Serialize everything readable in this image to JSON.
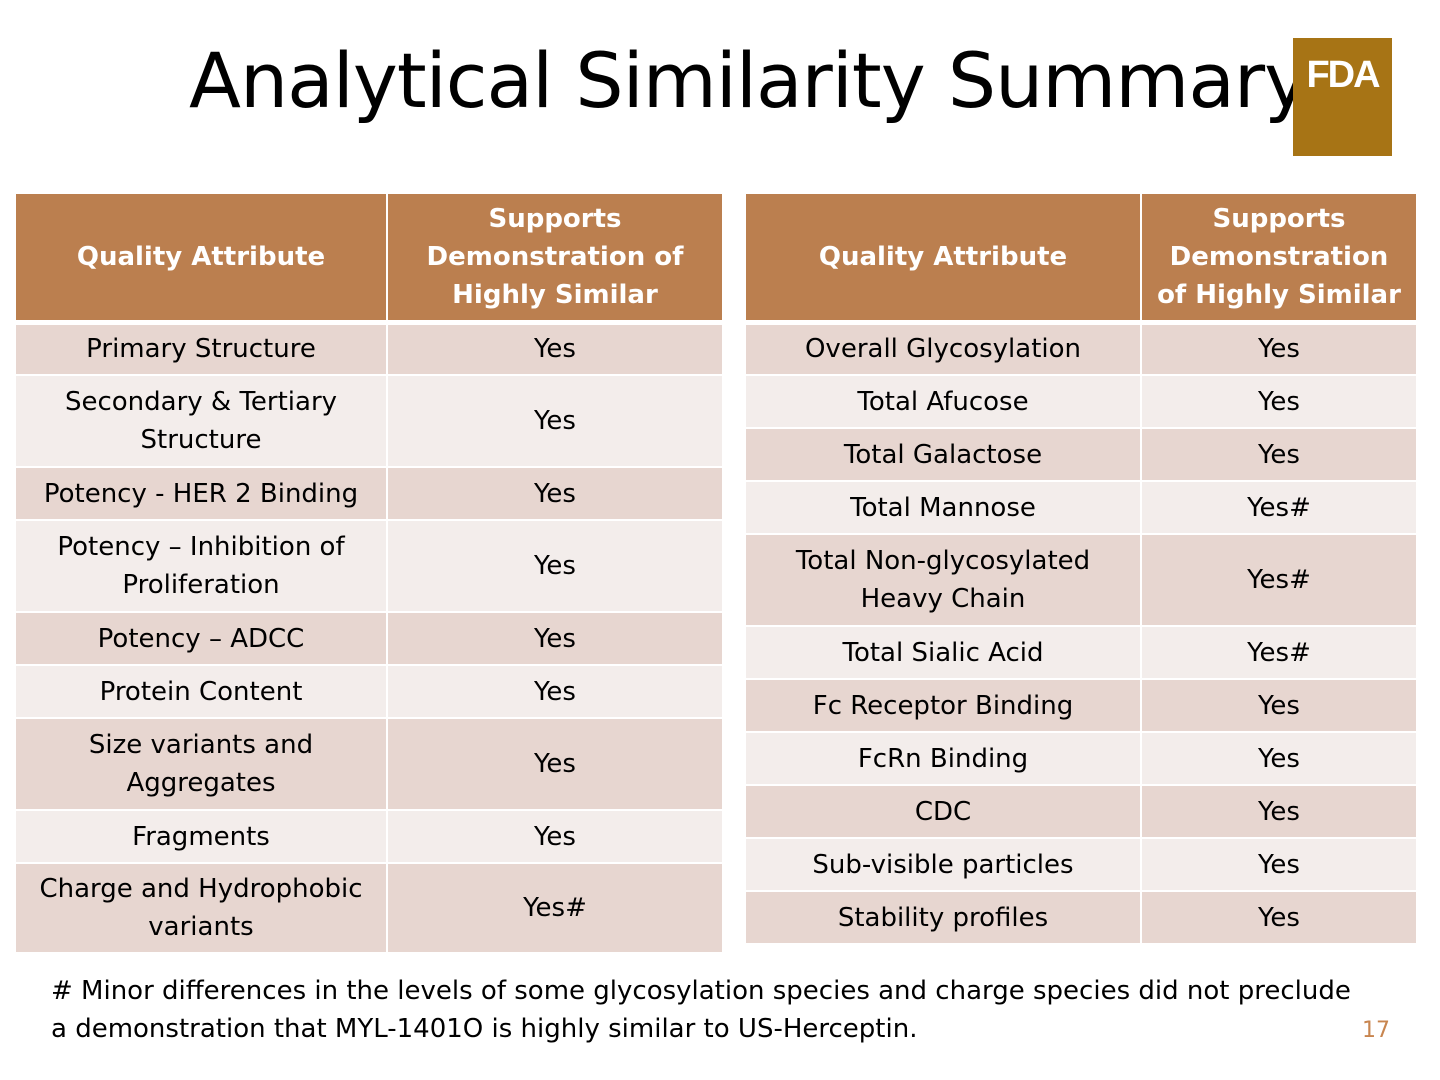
{
  "title": "Analytical Similarity Summary",
  "logo": {
    "text": "FDA",
    "color": "#a77415"
  },
  "colors": {
    "header": "#bb7f4f",
    "row_dark": "#e7d6d0",
    "row_light": "#f3edeb",
    "page_number": "#c8854f"
  },
  "left_table": {
    "headers": [
      "Quality Attribute",
      "Supports Demonstration of Highly Similar"
    ],
    "rows": [
      [
        "Primary Structure",
        "Yes"
      ],
      [
        "Secondary & Tertiary Structure",
        "Yes"
      ],
      [
        "Potency - HER 2 Binding",
        "Yes"
      ],
      [
        "Potency – Inhibition of Proliferation",
        "Yes"
      ],
      [
        "Potency – ADCC",
        "Yes"
      ],
      [
        "Protein Content",
        "Yes"
      ],
      [
        "Size variants and Aggregates",
        "Yes"
      ],
      [
        "Fragments",
        "Yes"
      ],
      [
        "Charge and Hydrophobic variants",
        "Yes#"
      ]
    ]
  },
  "right_table": {
    "headers": [
      "Quality Attribute",
      "Supports Demonstration of Highly Similar"
    ],
    "rows": [
      [
        "Overall Glycosylation",
        "Yes"
      ],
      [
        "Total Afucose",
        "Yes"
      ],
      [
        "Total Galactose",
        "Yes"
      ],
      [
        "Total Mannose",
        "Yes#"
      ],
      [
        "Total Non-glycosylated Heavy Chain",
        "Yes#"
      ],
      [
        "Total Sialic Acid",
        "Yes#"
      ],
      [
        "Fc Receptor Binding",
        "Yes"
      ],
      [
        "FcRn Binding",
        "Yes"
      ],
      [
        "CDC",
        "Yes"
      ],
      [
        "Sub-visible particles",
        "Yes"
      ],
      [
        "Stability profiles",
        "Yes"
      ]
    ]
  },
  "footnote": "# Minor differences in the levels of some glycosylation species and charge species did not preclude a demonstration that MYL-1401O is highly similar to US-Herceptin.",
  "page_number": "17"
}
